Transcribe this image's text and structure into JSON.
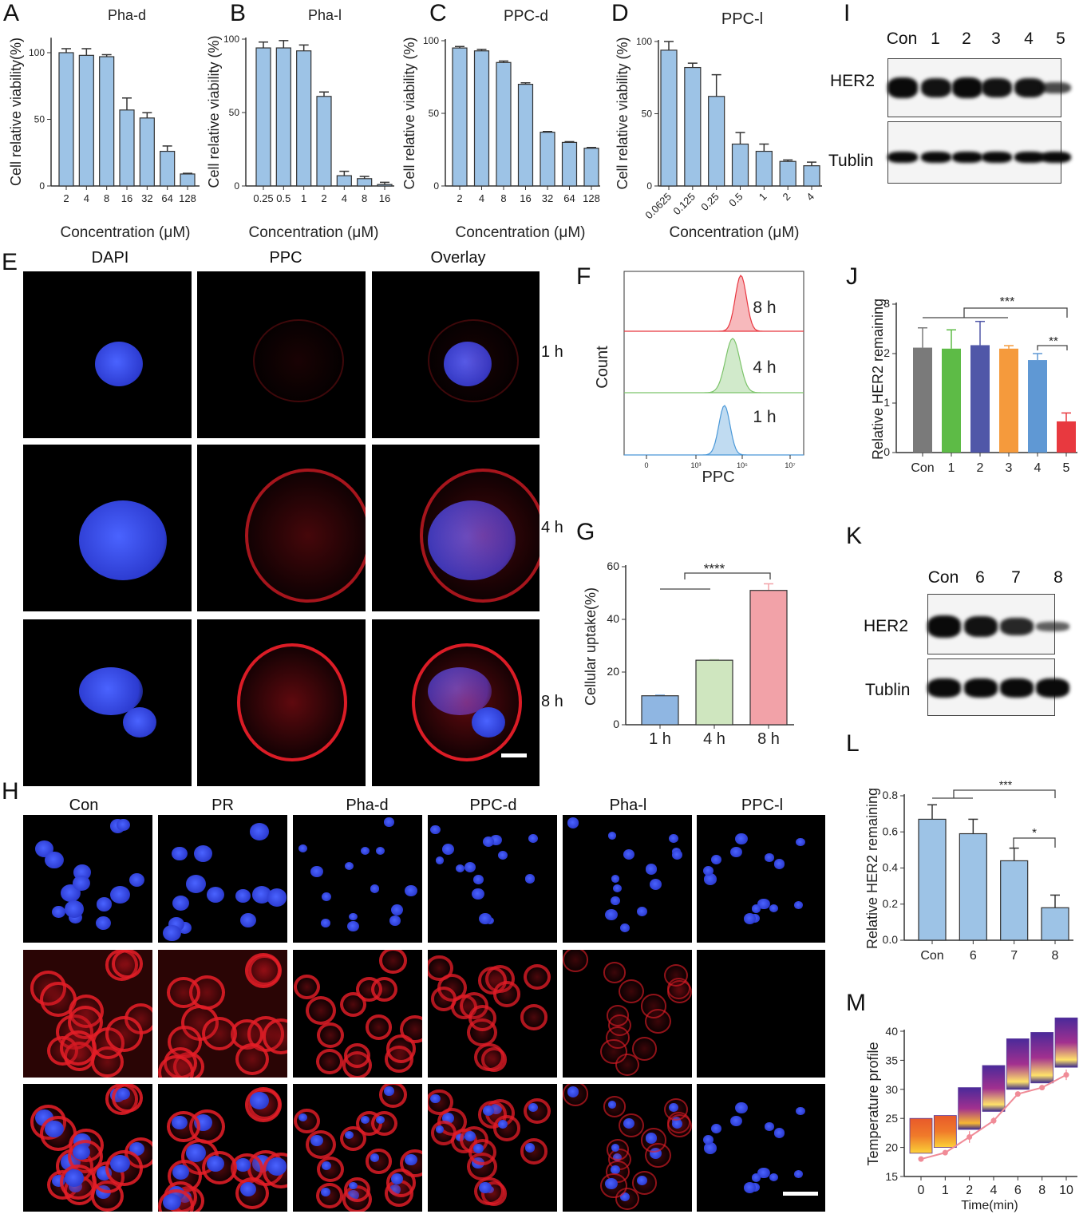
{
  "panel_letters": {
    "A": "A",
    "B": "B",
    "C": "C",
    "D": "D",
    "E": "E",
    "F": "F",
    "G": "G",
    "H": "H",
    "I": "I",
    "J": "J",
    "K": "K",
    "L": "L",
    "M": "M"
  },
  "panel_E": {
    "columns": [
      "DAPI",
      "PPC",
      "Overlay"
    ],
    "rows": [
      "1 h",
      "4 h",
      "8 h"
    ]
  },
  "panel_H": {
    "columns": [
      "Con",
      "PR",
      "Pha-d",
      "PPC-d",
      "Pha-l",
      "PPC-l"
    ]
  },
  "panel_I": {
    "lanes": [
      "Con",
      "1",
      "2",
      "3",
      "4",
      "5"
    ],
    "bands": [
      "HER2",
      "Tublin"
    ],
    "her2_intensity": [
      1.0,
      0.95,
      1.0,
      0.95,
      0.95,
      0.55
    ]
  },
  "panel_K": {
    "lanes": [
      "Con",
      "6",
      "7",
      "8"
    ],
    "bands": [
      "HER2",
      "Tublin"
    ],
    "her2_intensity": [
      1.0,
      0.95,
      0.8,
      0.4
    ]
  },
  "colors": {
    "bar_blue": "#9dc3e6",
    "bar_edge": "#222222",
    "line_pink": "#f08b97"
  },
  "chart_data": [
    {
      "id": "A",
      "type": "bar",
      "title": "Pha-d",
      "xlabel": "Concentration (μM)",
      "ylabel": "Cell relative viability(%)",
      "categories": [
        "2",
        "4",
        "8",
        "16",
        "32",
        "64",
        "128"
      ],
      "values": [
        100,
        98,
        97,
        57,
        51,
        26,
        9
      ],
      "errors": [
        3,
        5,
        1.5,
        9,
        4,
        4,
        0.5
      ],
      "ylim": [
        0,
        110
      ],
      "yticks": [
        0,
        50,
        100
      ],
      "grid": false
    },
    {
      "id": "B",
      "type": "bar",
      "title": "Pha-l",
      "xlabel": "Concentration (μM)",
      "ylabel": "Cell relative viability (%)",
      "categories": [
        "0.25",
        "0.5",
        "1",
        "2",
        "4",
        "8",
        "16"
      ],
      "values": [
        94,
        94,
        92,
        61,
        7,
        5,
        1
      ],
      "errors": [
        4,
        5,
        4,
        3,
        3,
        1.5,
        1.5
      ],
      "ylim": [
        0,
        100
      ],
      "yticks": [
        0,
        50,
        100
      ],
      "grid": false
    },
    {
      "id": "C",
      "type": "bar",
      "title": "PPC-d",
      "xlabel": "Concentration (μM)",
      "ylabel": "Cell relative viability (%)",
      "categories": [
        "2",
        "4",
        "8",
        "16",
        "32",
        "64",
        "128"
      ],
      "values": [
        95,
        93,
        85,
        70,
        37,
        30,
        26
      ],
      "errors": [
        1,
        1,
        1,
        1,
        0.5,
        0.5,
        0.5
      ],
      "ylim": [
        0,
        100
      ],
      "yticks": [
        0,
        50,
        100
      ],
      "grid": false
    },
    {
      "id": "D",
      "type": "bar",
      "title": "PPC-l",
      "xlabel": "Concentration (μM)",
      "ylabel": "Cell relative viability (%)",
      "categories": [
        "0.0625",
        "0.125",
        "0.25",
        "0.5",
        "1",
        "2",
        "4"
      ],
      "values": [
        94,
        82,
        62,
        29,
        24,
        17,
        14
      ],
      "errors": [
        6,
        3,
        15,
        8,
        5,
        1,
        2.5
      ],
      "ylim": [
        0,
        100
      ],
      "yticks": [
        0,
        50,
        100
      ],
      "grid": false
    },
    {
      "id": "F",
      "type": "histogram",
      "xlabel": "PPC",
      "ylabel": "Count",
      "xticks": [
        "0",
        "10³",
        "10⁵",
        "10⁷"
      ],
      "series": [
        {
          "name": "8 h",
          "peak_log10": 4.6,
          "color": "#e8363f"
        },
        {
          "name": "4 h",
          "peak_log10": 4.2,
          "color": "#7cc36a"
        },
        {
          "name": "1 h",
          "peak_log10": 3.8,
          "color": "#4a98d8"
        }
      ]
    },
    {
      "id": "G",
      "type": "bar",
      "ylabel": "Cellular uptake(%)",
      "categories": [
        "1 h",
        "4 h",
        "8 h"
      ],
      "values": [
        11,
        24.5,
        51
      ],
      "errors": [
        0.3,
        0.2,
        2.5
      ],
      "colors": [
        "#8fb6e2",
        "#cfe6bf",
        "#f2a2a8"
      ],
      "ylim": [
        0,
        60
      ],
      "yticks": [
        0,
        20,
        40,
        60
      ],
      "significance": [
        "****"
      ]
    },
    {
      "id": "J",
      "type": "bar",
      "ylabel": "Relative HER2 remaining",
      "categories": [
        "Con",
        "1",
        "2",
        "3",
        "4",
        "5"
      ],
      "values": [
        2.12,
        2.1,
        2.17,
        2.1,
        1.87,
        0.63
      ],
      "errors": [
        0.4,
        0.38,
        0.48,
        0.06,
        0.13,
        0.17
      ],
      "colors": [
        "#7a7a7a",
        "#5dbb46",
        "#5057a8",
        "#f59a3c",
        "#5f98d4",
        "#e8393f"
      ],
      "ylim": [
        0,
        3
      ],
      "yticks": [
        0,
        1,
        2,
        3
      ],
      "significance": [
        "***",
        "**"
      ]
    },
    {
      "id": "L",
      "type": "bar",
      "ylabel": "Relative HER2 remaining",
      "categories": [
        "Con",
        "6",
        "7",
        "8"
      ],
      "values": [
        0.67,
        0.59,
        0.44,
        0.18
      ],
      "errors": [
        0.08,
        0.08,
        0.07,
        0.07
      ],
      "ylim": [
        0,
        0.8
      ],
      "yticks": [
        "0.0",
        "0.2",
        "0.4",
        "0.6",
        "0.8"
      ],
      "significance": [
        "***",
        "*"
      ]
    },
    {
      "id": "M",
      "type": "line",
      "xlabel": "Time(min)",
      "ylabel": "Temperature profile",
      "categories": [
        "0",
        "1",
        "2",
        "4",
        "6",
        "8",
        "10"
      ],
      "values": [
        18,
        19.1,
        21.8,
        24.6,
        29.2,
        30.3,
        32.5
      ],
      "errors": [
        0.3,
        0.2,
        1,
        0.6,
        0.4,
        0.2,
        0.9
      ],
      "ylim": [
        15,
        40
      ],
      "yticks": [
        15,
        20,
        25,
        30,
        35,
        40
      ]
    }
  ]
}
